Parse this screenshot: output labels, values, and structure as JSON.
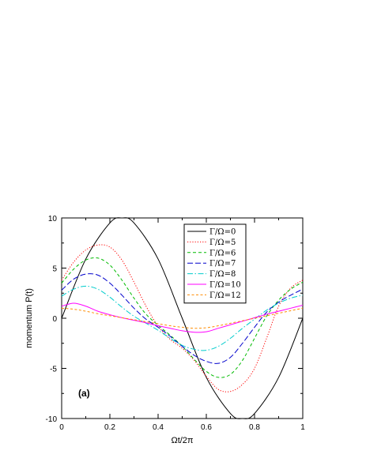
{
  "chart_data": {
    "type": "line",
    "xlabel": "Ωt/2π",
    "ylabel": "momentum P(t)",
    "xlim": [
      0,
      1
    ],
    "ylim": [
      -10,
      10
    ],
    "x_ticks": [
      "0",
      "0.2",
      "0.4",
      "0.6",
      "0.8",
      "1"
    ],
    "y_ticks": [
      "-10",
      "-5",
      "0",
      "5",
      "10"
    ],
    "grid": false,
    "legend_position": "top-right",
    "annotation": "(a)",
    "series": [
      {
        "name": "Γ/Ω=0",
        "color": "#000000",
        "dash": "solid",
        "x": [
          0,
          0.1,
          0.2,
          0.25,
          0.3,
          0.4,
          0.5,
          0.6,
          0.7,
          0.75,
          0.8,
          0.9,
          1.0
        ],
        "values": [
          0,
          5.9,
          9.5,
          10.0,
          9.5,
          5.9,
          0.0,
          -5.9,
          -9.5,
          -10.0,
          -9.5,
          -5.9,
          0
        ]
      },
      {
        "name": "Γ/Ω=5",
        "color": "#ff0000",
        "dash": "dotted",
        "x": [
          0,
          0.05,
          0.1,
          0.15,
          0.2,
          0.25,
          0.3,
          0.35,
          0.4,
          0.45,
          0.5,
          0.55,
          0.6,
          0.65,
          0.7,
          0.75,
          0.8,
          0.85,
          0.9,
          0.95,
          1.0
        ],
        "values": [
          3.8,
          5.6,
          6.8,
          7.3,
          7.1,
          5.8,
          3.6,
          1.2,
          -0.8,
          -2.1,
          -3.0,
          -4.2,
          -5.8,
          -7.1,
          -7.3,
          -6.6,
          -5.0,
          -2.0,
          1.2,
          3.0,
          3.8
        ]
      },
      {
        "name": "Γ/Ω=6",
        "color": "#00bb00",
        "dash": "dashed",
        "x": [
          0,
          0.05,
          0.1,
          0.15,
          0.2,
          0.25,
          0.3,
          0.35,
          0.4,
          0.45,
          0.5,
          0.55,
          0.6,
          0.65,
          0.7,
          0.75,
          0.8,
          0.85,
          0.9,
          0.95,
          1.0
        ],
        "values": [
          3.5,
          4.9,
          5.8,
          6.0,
          5.3,
          3.8,
          2.0,
          0.4,
          -0.7,
          -1.7,
          -2.8,
          -4.1,
          -5.3,
          -5.9,
          -5.6,
          -4.2,
          -2.0,
          0.2,
          1.8,
          2.9,
          3.6
        ]
      },
      {
        "name": "Γ/Ω=7",
        "color": "#0000cc",
        "dash": "longdash",
        "x": [
          0,
          0.05,
          0.1,
          0.15,
          0.2,
          0.25,
          0.3,
          0.35,
          0.4,
          0.45,
          0.5,
          0.55,
          0.6,
          0.65,
          0.7,
          0.75,
          0.8,
          0.85,
          0.9,
          0.95,
          1.0
        ],
        "values": [
          2.8,
          3.9,
          4.4,
          4.3,
          3.5,
          2.3,
          1.0,
          -0.1,
          -0.9,
          -1.8,
          -2.8,
          -3.7,
          -4.3,
          -4.5,
          -3.9,
          -2.5,
          -0.9,
          0.6,
          1.6,
          2.3,
          2.9
        ]
      },
      {
        "name": "Γ/Ω=8",
        "color": "#00cccc",
        "dash": "dashdot",
        "x": [
          0,
          0.05,
          0.1,
          0.15,
          0.2,
          0.25,
          0.3,
          0.35,
          0.4,
          0.45,
          0.5,
          0.55,
          0.6,
          0.65,
          0.7,
          0.75,
          0.8,
          0.85,
          0.9,
          0.95,
          1.0
        ],
        "values": [
          2.2,
          2.9,
          3.2,
          2.9,
          2.1,
          1.1,
          0.2,
          -0.5,
          -1.2,
          -2.0,
          -2.7,
          -3.1,
          -3.2,
          -2.8,
          -2.0,
          -1.0,
          -0.1,
          0.8,
          1.5,
          2.0,
          2.3
        ]
      },
      {
        "name": "Γ/Ω=10",
        "color": "#ff00ff",
        "dash": "solid",
        "x": [
          0,
          0.05,
          0.1,
          0.15,
          0.2,
          0.25,
          0.3,
          0.35,
          0.4,
          0.45,
          0.5,
          0.55,
          0.6,
          0.65,
          0.7,
          0.75,
          0.8,
          0.85,
          0.9,
          0.95,
          1.0
        ],
        "values": [
          1.2,
          1.5,
          1.2,
          0.7,
          0.35,
          0.05,
          -0.2,
          -0.45,
          -0.75,
          -1.0,
          -1.25,
          -1.4,
          -1.35,
          -1.0,
          -0.65,
          -0.3,
          0.05,
          0.4,
          0.7,
          1.0,
          1.3
        ]
      },
      {
        "name": "Γ/Ω=12",
        "color": "#ff8c00",
        "dash": "shortdash",
        "x": [
          0,
          0.05,
          0.1,
          0.15,
          0.2,
          0.25,
          0.3,
          0.35,
          0.4,
          0.45,
          0.5,
          0.55,
          0.6,
          0.65,
          0.7,
          0.75,
          0.8,
          0.85,
          0.9,
          0.95,
          1.0
        ],
        "values": [
          1.0,
          0.9,
          0.7,
          0.45,
          0.25,
          0.05,
          -0.15,
          -0.35,
          -0.55,
          -0.75,
          -0.9,
          -1.0,
          -0.95,
          -0.75,
          -0.5,
          -0.25,
          0.0,
          0.25,
          0.5,
          0.75,
          1.0
        ]
      }
    ]
  }
}
